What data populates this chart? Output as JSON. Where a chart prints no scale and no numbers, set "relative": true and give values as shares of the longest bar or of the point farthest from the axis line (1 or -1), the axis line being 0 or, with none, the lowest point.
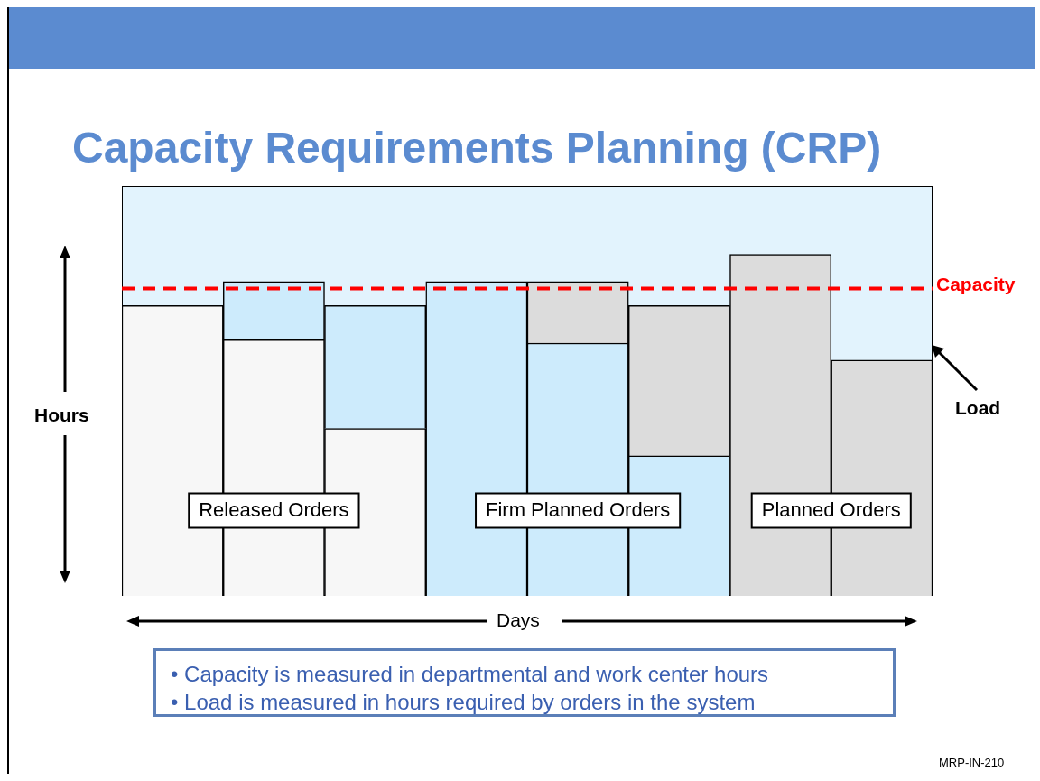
{
  "chart_data": {
    "type": "bar",
    "title": "Capacity Requirements Planning (CRP)",
    "xlabel": "Days",
    "ylabel": "Hours",
    "relative": true,
    "stacked": true,
    "legend": false,
    "categories": [
      null,
      null,
      null,
      null,
      null,
      null,
      null,
      null
    ],
    "series": [
      {
        "name": "Released Orders",
        "color": "#f7f7f7",
        "values": [
          0.85,
          0.75,
          0.49,
          null,
          null,
          null,
          null,
          null
        ]
      },
      {
        "name": "Firm Planned Orders",
        "color": "#cdebfc",
        "values": [
          null,
          0.17,
          0.36,
          0.92,
          0.74,
          0.41,
          null,
          null
        ]
      },
      {
        "name": "Planned Orders",
        "color": "#dcdcdc",
        "values": [
          null,
          null,
          null,
          null,
          0.18,
          0.44,
          1,
          0.69
        ]
      }
    ],
    "ref_lines": [
      {
        "axis": "y",
        "value": 0.9,
        "label": "Capacity",
        "color": "#ff0000",
        "line_style": "dashed"
      }
    ],
    "annotations": [
      "Load",
      "• Capacity is measured in departmental and work center hours",
      "• Load is measured in hours required by orders in the system",
      "MRP-IN-210"
    ]
  }
}
